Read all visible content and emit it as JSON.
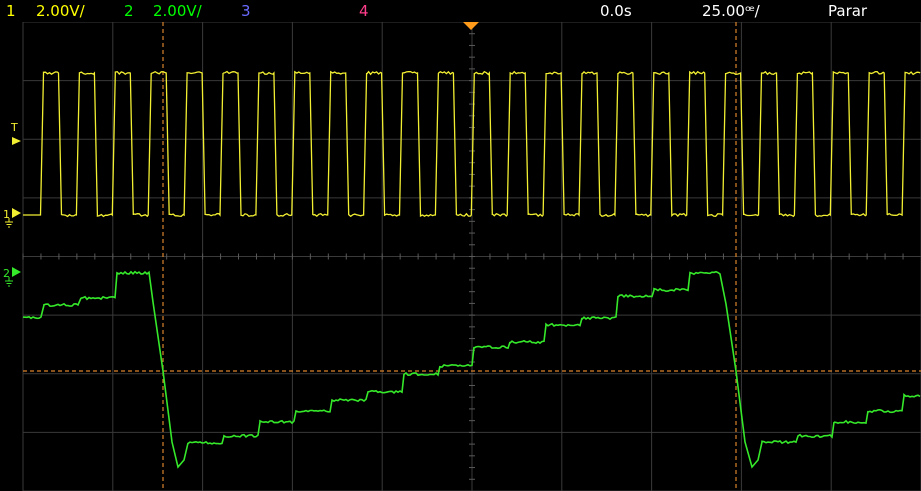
{
  "status_bar": {
    "ch1": {
      "number": "1",
      "scale": "2.00V/",
      "color": "#ffff00"
    },
    "ch2": {
      "number": "2",
      "scale": "2.00V/",
      "color": "#00ff00"
    },
    "ch3": {
      "number": "3",
      "color": "#6a6aff"
    },
    "ch4": {
      "number": "4",
      "color": "#ff3d8a"
    },
    "time_position": "0.0s",
    "time_scale": "25.00ꟹ/",
    "run_state": "Parar"
  },
  "markers": {
    "trigger": "T",
    "ch1_ground": "1",
    "ch2_ground": "2"
  },
  "colors": {
    "grid": "#3a3a3a",
    "grid_dot": "#5a5a5a",
    "cursor": "#d9822b",
    "trigger_marker": "#ff9a1a",
    "ch1_trace": "#f2ef32",
    "ch2_trace": "#35e82a"
  }
}
